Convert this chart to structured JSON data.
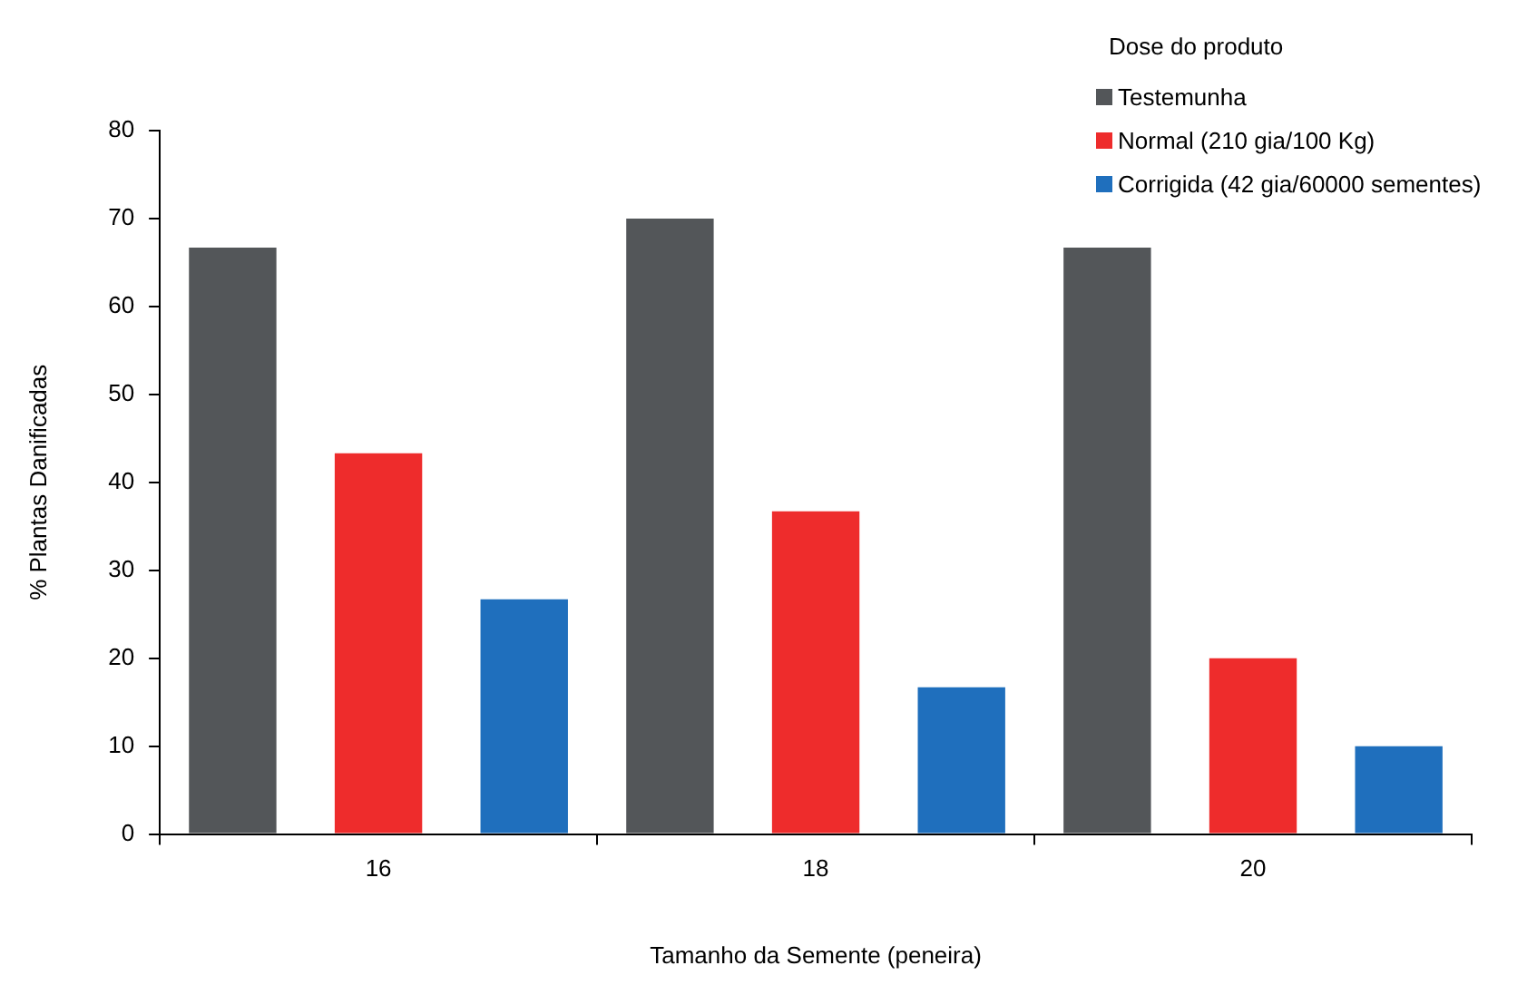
{
  "chart_data": {
    "type": "bar",
    "xlabel": "Tamanho da Semente (peneira)",
    "ylabel": "% Plantas Danificadas",
    "legend_title": "Dose do produto",
    "categories": [
      "16",
      "18",
      "20"
    ],
    "series": [
      {
        "name": "Testemunha",
        "color": "#535659",
        "values": [
          66.7,
          70,
          66.7
        ]
      },
      {
        "name": "Normal (210 gia/100 Kg)",
        "color": "#ee2c2c",
        "values": [
          43.3,
          36.7,
          20
        ]
      },
      {
        "name": "Corrigida (42 gia/60000 sementes)",
        "color": "#1f6fbd",
        "values": [
          26.7,
          16.7,
          10
        ]
      }
    ],
    "ylim": [
      0,
      80
    ],
    "yticks": [
      0,
      10,
      20,
      30,
      40,
      50,
      60,
      70,
      80
    ],
    "grid": false,
    "legend": "top right"
  }
}
